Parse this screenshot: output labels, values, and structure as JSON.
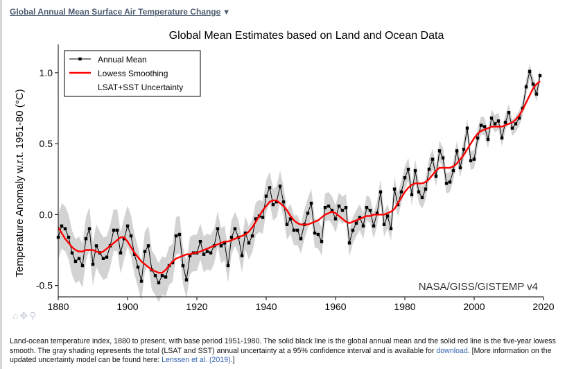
{
  "header": {
    "link_label": "Global Annual Mean Surface Air Temperature Change",
    "caret": "▼"
  },
  "toolbar": {
    "home_icon": "⌂",
    "pan_icon": "✥",
    "zoom_icon": "⚲"
  },
  "caption": {
    "part1": "Land-ocean temperature index, 1880 to present, with base period 1951-1980. The solid black line is the global annual mean and the solid red line is the five-year lowess smooth. The gray shading represents the total (LSAT and SST) annual uncertainty at a 95% confidence interval and is available for ",
    "download_link": "download",
    "part2": ". [More information on the updated uncertainty model can be found here: ",
    "reference_link": "Lenssen et al. (2019)",
    "part3": ".]"
  },
  "chart_data": {
    "type": "line",
    "title": "Global Mean Estimates based on Land and Ocean Data",
    "xlabel": "",
    "ylabel": "Temperature Anomaly w.r.t. 1951-80 (°C)",
    "xlim": [
      1880,
      2020
    ],
    "ylim": [
      -0.58,
      1.2
    ],
    "xticks": [
      1880,
      1900,
      1920,
      1940,
      1960,
      1980,
      2000,
      2020
    ],
    "yticks": [
      -0.5,
      0.0,
      0.5,
      1.0
    ],
    "ytick_labels": [
      "-0.5",
      "0.0",
      "0.5",
      "1.0"
    ],
    "grid": false,
    "legend_position": "top-left",
    "watermark": "NASA/GISS/GISTEMP v4",
    "colors": {
      "annual": "#000000",
      "smooth": "#ff0000",
      "uncertainty": "#d3d3d3"
    },
    "x": [
      1880,
      1881,
      1882,
      1883,
      1884,
      1885,
      1886,
      1887,
      1888,
      1889,
      1890,
      1891,
      1892,
      1893,
      1894,
      1895,
      1896,
      1897,
      1898,
      1899,
      1900,
      1901,
      1902,
      1903,
      1904,
      1905,
      1906,
      1907,
      1908,
      1909,
      1910,
      1911,
      1912,
      1913,
      1914,
      1915,
      1916,
      1917,
      1918,
      1919,
      1920,
      1921,
      1922,
      1923,
      1924,
      1925,
      1926,
      1927,
      1928,
      1929,
      1930,
      1931,
      1932,
      1933,
      1934,
      1935,
      1936,
      1937,
      1938,
      1939,
      1940,
      1941,
      1942,
      1943,
      1944,
      1945,
      1946,
      1947,
      1948,
      1949,
      1950,
      1951,
      1952,
      1953,
      1954,
      1955,
      1956,
      1957,
      1958,
      1959,
      1960,
      1961,
      1962,
      1963,
      1964,
      1965,
      1966,
      1967,
      1968,
      1969,
      1970,
      1971,
      1972,
      1973,
      1974,
      1975,
      1976,
      1977,
      1978,
      1979,
      1980,
      1981,
      1982,
      1983,
      1984,
      1985,
      1986,
      1987,
      1988,
      1989,
      1990,
      1991,
      1992,
      1993,
      1994,
      1995,
      1996,
      1997,
      1998,
      1999,
      2000,
      2001,
      2002,
      2003,
      2004,
      2005,
      2006,
      2007,
      2008,
      2009,
      2010,
      2011,
      2012,
      2013,
      2014,
      2015,
      2016,
      2017,
      2018,
      2019
    ],
    "series": [
      {
        "name": "Annual Mean",
        "values": [
          -0.16,
          -0.08,
          -0.1,
          -0.16,
          -0.27,
          -0.33,
          -0.31,
          -0.36,
          -0.17,
          -0.1,
          -0.35,
          -0.22,
          -0.27,
          -0.31,
          -0.3,
          -0.22,
          -0.11,
          -0.11,
          -0.27,
          -0.17,
          -0.08,
          -0.15,
          -0.28,
          -0.37,
          -0.47,
          -0.26,
          -0.22,
          -0.39,
          -0.43,
          -0.48,
          -0.43,
          -0.44,
          -0.36,
          -0.34,
          -0.15,
          -0.14,
          -0.36,
          -0.46,
          -0.29,
          -0.27,
          -0.27,
          -0.19,
          -0.28,
          -0.26,
          -0.27,
          -0.22,
          -0.1,
          -0.22,
          -0.2,
          -0.36,
          -0.16,
          -0.1,
          -0.16,
          -0.29,
          -0.13,
          -0.2,
          -0.15,
          -0.03,
          -0.01,
          -0.02,
          0.13,
          0.19,
          0.07,
          0.09,
          0.2,
          0.09,
          -0.07,
          -0.03,
          -0.11,
          -0.11,
          -0.17,
          -0.07,
          0.01,
          0.08,
          -0.13,
          -0.14,
          -0.19,
          0.05,
          0.06,
          0.03,
          -0.03,
          0.06,
          0.03,
          0.05,
          -0.2,
          -0.11,
          -0.06,
          -0.02,
          -0.08,
          0.05,
          0.03,
          -0.08,
          0.01,
          0.16,
          -0.07,
          -0.01,
          -0.1,
          0.18,
          0.07,
          0.16,
          0.26,
          0.32,
          0.14,
          0.31,
          0.16,
          0.12,
          0.18,
          0.32,
          0.39,
          0.27,
          0.45,
          0.4,
          0.22,
          0.23,
          0.31,
          0.45,
          0.33,
          0.46,
          0.61,
          0.38,
          0.39,
          0.54,
          0.63,
          0.62,
          0.53,
          0.68,
          0.64,
          0.66,
          0.54,
          0.65,
          0.72,
          0.61,
          0.64,
          0.68,
          0.75,
          0.9,
          1.01,
          0.92,
          0.85,
          0.98
        ]
      },
      {
        "name": "Lowess Smoothing",
        "values": [
          -0.09,
          -0.13,
          -0.17,
          -0.2,
          -0.23,
          -0.25,
          -0.26,
          -0.26,
          -0.25,
          -0.25,
          -0.25,
          -0.26,
          -0.27,
          -0.26,
          -0.24,
          -0.22,
          -0.2,
          -0.18,
          -0.16,
          -0.16,
          -0.19,
          -0.23,
          -0.27,
          -0.3,
          -0.33,
          -0.35,
          -0.37,
          -0.39,
          -0.4,
          -0.41,
          -0.41,
          -0.39,
          -0.36,
          -0.33,
          -0.31,
          -0.3,
          -0.29,
          -0.28,
          -0.28,
          -0.27,
          -0.27,
          -0.26,
          -0.25,
          -0.24,
          -0.23,
          -0.22,
          -0.21,
          -0.2,
          -0.19,
          -0.19,
          -0.18,
          -0.17,
          -0.16,
          -0.15,
          -0.14,
          -0.12,
          -0.09,
          -0.05,
          -0.01,
          0.03,
          0.06,
          0.09,
          0.1,
          0.1,
          0.08,
          0.06,
          0.03,
          -0.01,
          -0.04,
          -0.06,
          -0.07,
          -0.07,
          -0.07,
          -0.06,
          -0.05,
          -0.04,
          -0.02,
          0.0,
          0.01,
          0.02,
          0.01,
          -0.01,
          -0.03,
          -0.05,
          -0.06,
          -0.05,
          -0.04,
          -0.03,
          -0.02,
          -0.01,
          -0.01,
          0.0,
          0.0,
          0.0,
          0.0,
          0.01,
          0.02,
          0.04,
          0.08,
          0.12,
          0.16,
          0.19,
          0.21,
          0.22,
          0.22,
          0.22,
          0.23,
          0.25,
          0.28,
          0.31,
          0.33,
          0.33,
          0.33,
          0.33,
          0.34,
          0.36,
          0.39,
          0.42,
          0.46,
          0.5,
          0.54,
          0.57,
          0.59,
          0.6,
          0.61,
          0.62,
          0.62,
          0.62,
          0.62,
          0.63,
          0.64,
          0.65,
          0.67,
          0.7,
          0.74,
          0.79,
          0.84,
          0.89,
          0.92,
          0.94
        ]
      }
    ],
    "uncertainty": {
      "name": "LSAT+SST Uncertainty",
      "half_width_start": 0.16,
      "half_width_end": 0.05
    }
  }
}
